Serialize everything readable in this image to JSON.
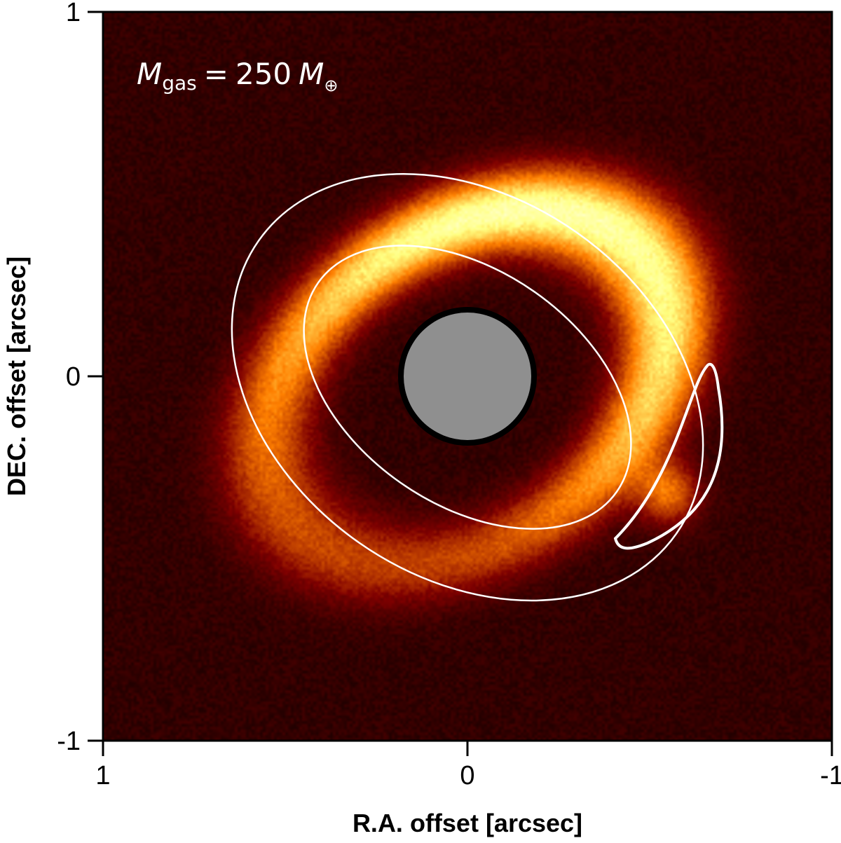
{
  "chart_data": {
    "type": "heatmap",
    "title": "",
    "xlabel": "R.A. offset [arcsec]",
    "ylabel": "DEC. offset [arcsec]",
    "xlim": [
      1,
      -1
    ],
    "ylim": [
      -1,
      1
    ],
    "x_ticks": [
      1,
      0,
      -1
    ],
    "y_ticks": [
      -1,
      0,
      1
    ],
    "x_tick_labels": [
      "1",
      "0",
      "-1"
    ],
    "y_tick_labels": [
      "-1",
      "0",
      "1"
    ],
    "colormap": "afmhot",
    "annotation": {
      "symbol": "M",
      "subscript": "gas",
      "equals": "=",
      "value": "250",
      "unit_symbol": "M",
      "unit_subscript": "⊕"
    },
    "ring": {
      "center_ra": 0.0,
      "center_dec": -0.03,
      "semi_major_arcsec": 0.6,
      "semi_minor_arcsec": 0.42,
      "position_angle_deg": 35,
      "width_arcsec": 0.18,
      "peak_brightness": 1.0
    },
    "contours": [
      {
        "name": "outer",
        "semi_major_arcsec": 0.7,
        "semi_minor_arcsec": 0.52
      },
      {
        "name": "inner",
        "semi_major_arcsec": 0.5,
        "semi_minor_arcsec": 0.32
      }
    ],
    "clump": {
      "ra": -0.55,
      "dec": -0.32,
      "label": ""
    },
    "masked_center_radius_arcsec": 0.175,
    "colors": {
      "background": "#1e0400",
      "mask": "#8f8f8f",
      "contour": "#ffffff"
    }
  }
}
